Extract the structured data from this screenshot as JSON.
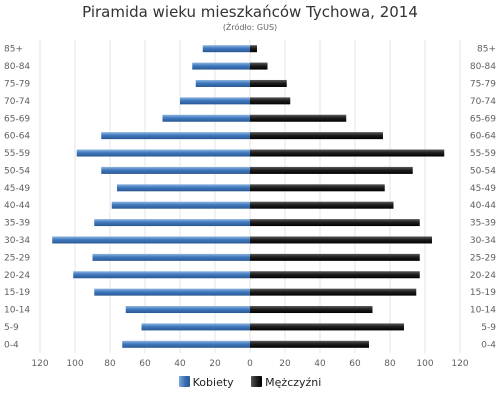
{
  "chart_data": {
    "type": "bar",
    "orientation": "horizontal-population-pyramid",
    "title": "Piramida wieku mieszkańców Tychowa, 2014",
    "subtitle": "(Źródło: GUS)",
    "categories": [
      "85+",
      "80-84",
      "75-79",
      "70-74",
      "65-69",
      "60-64",
      "55-59",
      "50-54",
      "45-49",
      "40-44",
      "35-39",
      "30-34",
      "25-29",
      "20-24",
      "15-19",
      "10-14",
      "5-9",
      "0-4"
    ],
    "series": [
      {
        "name": "Kobiety",
        "side": "left",
        "color": "#3a6fb0",
        "values": [
          27,
          33,
          31,
          40,
          50,
          85,
          99,
          85,
          76,
          79,
          89,
          113,
          90,
          101,
          89,
          71,
          62,
          73
        ]
      },
      {
        "name": "Mężczyźni",
        "side": "right",
        "color": "#111111",
        "values": [
          4,
          10,
          21,
          23,
          55,
          76,
          111,
          93,
          77,
          82,
          97,
          104,
          97,
          97,
          95,
          70,
          88,
          68
        ]
      }
    ],
    "x_ticks": [
      "120",
      "100",
      "80",
      "60",
      "40",
      "20",
      "0",
      "20",
      "40",
      "60",
      "80",
      "100",
      "120"
    ],
    "xlim": [
      -120,
      120
    ],
    "grid": true,
    "legend_position": "bottom-center"
  }
}
